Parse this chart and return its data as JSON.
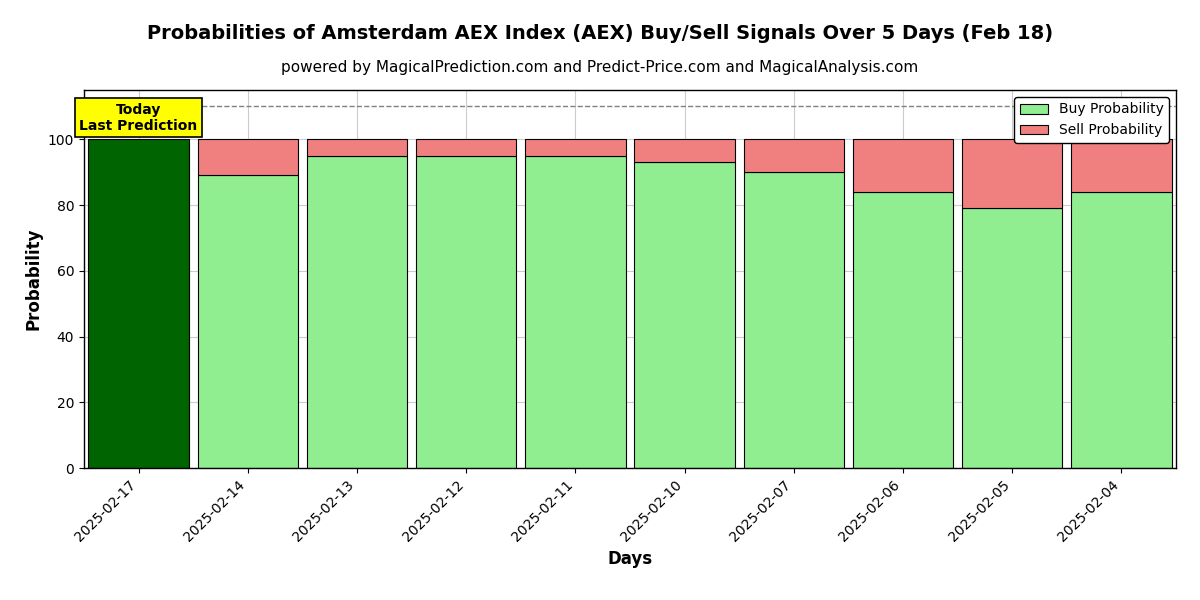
{
  "title": "Probabilities of Amsterdam AEX Index (AEX) Buy/Sell Signals Over 5 Days (Feb 18)",
  "subtitle": "powered by MagicalPrediction.com and Predict-Price.com and MagicalAnalysis.com",
  "xlabel": "Days",
  "ylabel": "Probability",
  "categories": [
    "2025-02-17",
    "2025-02-14",
    "2025-02-13",
    "2025-02-12",
    "2025-02-11",
    "2025-02-10",
    "2025-02-07",
    "2025-02-06",
    "2025-02-05",
    "2025-02-04"
  ],
  "buy_values": [
    100,
    89,
    95,
    95,
    95,
    93,
    90,
    84,
    79,
    84
  ],
  "sell_values": [
    0,
    11,
    5,
    5,
    5,
    7,
    10,
    16,
    21,
    16
  ],
  "today_bar_color": "#006400",
  "buy_color": "#90EE90",
  "sell_color": "#F08080",
  "today_annotation": "Today\nLast Prediction",
  "today_annotation_bg": "#FFFF00",
  "dashed_line_y": 110,
  "ylim": [
    0,
    115
  ],
  "yticks": [
    0,
    20,
    40,
    60,
    80,
    100
  ],
  "legend_buy_label": "Buy Probability",
  "legend_sell_label": "Sell Probability",
  "bar_edge_color": "#000000",
  "bar_edge_width": 0.8,
  "grid_color": "#cccccc",
  "title_fontsize": 14,
  "subtitle_fontsize": 11,
  "label_fontsize": 12,
  "tick_fontsize": 10,
  "bar_width": 0.92
}
